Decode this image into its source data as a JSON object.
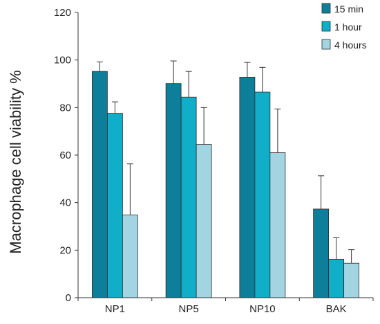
{
  "chart_data": {
    "type": "bar",
    "title": "",
    "xlabel": "",
    "ylabel": "Macrophage cell  viability %",
    "ylim": [
      0,
      120
    ],
    "yticks": [
      0,
      20,
      40,
      60,
      80,
      100,
      120
    ],
    "grid": false,
    "legend_position": "top-right",
    "categories": [
      "NP1",
      "NP5",
      "NP10",
      "BAK"
    ],
    "series": [
      {
        "name": "15 min",
        "color": "#0e7f9a",
        "values": [
          95.2,
          90.1,
          92.8,
          37.3
        ],
        "error": [
          4.0,
          9.5,
          6.2,
          14.0
        ]
      },
      {
        "name": "1 hour",
        "color": "#10aec9",
        "values": [
          77.6,
          84.4,
          86.5,
          16.2
        ],
        "error": [
          4.8,
          10.8,
          10.4,
          9.0
        ]
      },
      {
        "name": "4 hours",
        "color": "#a2d5e1",
        "values": [
          34.8,
          64.5,
          61.0,
          14.5
        ],
        "error": [
          21.5,
          15.5,
          18.4,
          5.7
        ]
      }
    ]
  }
}
